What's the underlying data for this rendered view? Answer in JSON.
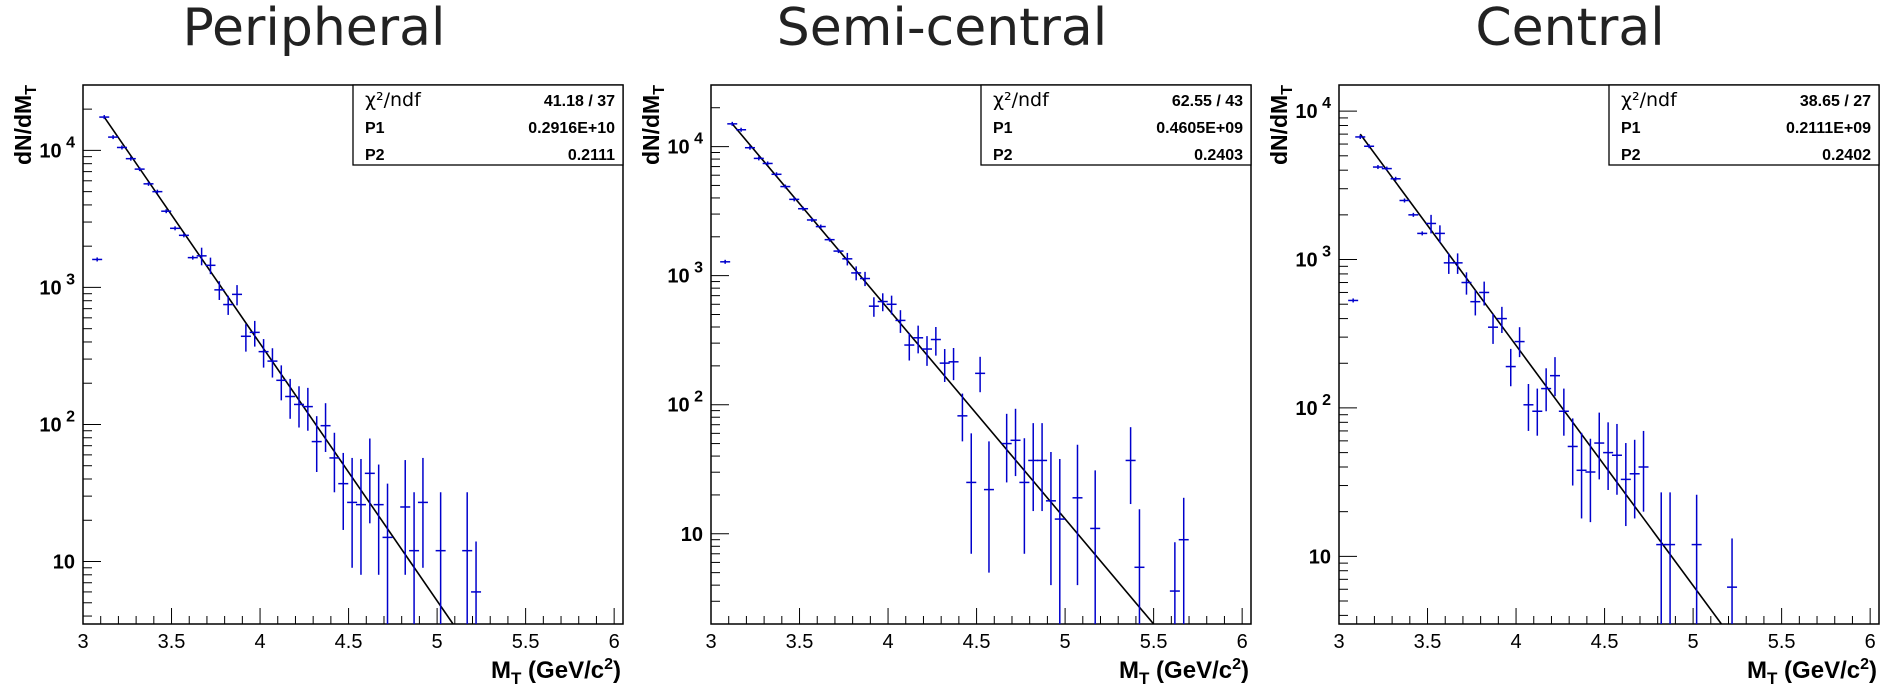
{
  "chart_data": [
    {
      "type": "scatter",
      "title": "Peripheral",
      "xlabel": "M_T (GeV/c^2)",
      "ylabel": "dN/dM_T",
      "xlim": [
        3,
        6.05
      ],
      "ylim": [
        3.5,
        30000
      ],
      "yscale": "log",
      "xticks": [
        "3",
        "3.5",
        "4",
        "4.5",
        "5",
        "5.5",
        "6"
      ],
      "yticks": [
        "10",
        "10^2",
        "10^3",
        "10^4"
      ],
      "fit_box": {
        "chi2_label": "χ²/ndf",
        "chi2": "41.18",
        "sep": "/",
        "ndf": "37",
        "p1_label": "P1",
        "p1": "0.2916E+10",
        "p2_label": "P2",
        "p2": "0.2111"
      },
      "fit_line": {
        "x": [
          3.12,
          5.09
        ],
        "y": [
          17500,
          3.5
        ]
      },
      "points": [
        [
          3.08,
          1600,
          0,
          0
        ],
        [
          3.12,
          17500,
          0,
          0
        ],
        [
          3.17,
          12500,
          0,
          0
        ],
        [
          3.22,
          10500,
          0,
          0
        ],
        [
          3.27,
          8700,
          0,
          0
        ],
        [
          3.32,
          7300,
          0,
          0
        ],
        [
          3.37,
          5700,
          0,
          0
        ],
        [
          3.42,
          5000,
          0,
          0
        ],
        [
          3.47,
          3600,
          0,
          0
        ],
        [
          3.52,
          2700,
          0,
          0
        ],
        [
          3.57,
          2400,
          0,
          0
        ],
        [
          3.62,
          1650,
          0,
          0
        ],
        [
          3.67,
          1700,
          250,
          250
        ],
        [
          3.72,
          1450,
          200,
          200
        ],
        [
          3.77,
          960,
          150,
          150
        ],
        [
          3.82,
          750,
          120,
          120
        ],
        [
          3.87,
          890,
          150,
          150
        ],
        [
          3.92,
          440,
          100,
          100
        ],
        [
          3.97,
          470,
          100,
          100
        ],
        [
          4.02,
          340,
          80,
          80
        ],
        [
          4.07,
          290,
          70,
          70
        ],
        [
          4.12,
          210,
          60,
          60
        ],
        [
          4.17,
          160,
          55,
          50
        ],
        [
          4.22,
          140,
          50,
          45
        ],
        [
          4.27,
          135,
          50,
          45
        ],
        [
          4.32,
          75,
          40,
          30
        ],
        [
          4.37,
          98,
          45,
          35
        ],
        [
          4.42,
          57,
          30,
          25
        ],
        [
          4.47,
          37,
          25,
          20
        ],
        [
          4.52,
          27,
          30,
          18
        ],
        [
          4.57,
          26,
          30,
          18
        ],
        [
          4.62,
          44,
          35,
          25
        ],
        [
          4.67,
          26,
          25,
          18
        ],
        [
          4.72,
          15,
          22,
          12
        ],
        [
          4.82,
          25,
          30,
          17
        ],
        [
          4.87,
          12,
          20,
          10
        ],
        [
          4.92,
          27,
          30,
          18
        ],
        [
          5.02,
          12,
          20,
          10
        ],
        [
          5.17,
          12,
          20,
          9
        ],
        [
          5.22,
          6,
          8,
          4
        ]
      ]
    },
    {
      "type": "scatter",
      "title": "Semi-central",
      "xlabel": "M_T (GeV/c^2)",
      "ylabel": "dN/dM_T",
      "xlim": [
        3,
        6.05
      ],
      "ylim": [
        2,
        30000
      ],
      "yscale": "log",
      "xticks": [
        "3",
        "3.5",
        "4",
        "4.5",
        "5",
        "5.5",
        "6"
      ],
      "yticks": [
        "10",
        "10^2",
        "10^3",
        "10^4"
      ],
      "fit_box": {
        "chi2_label": "χ²/ndf",
        "chi2": "62.55",
        "sep": "/",
        "ndf": "43",
        "p1_label": "P1",
        "p1": "0.4605E+09",
        "p2_label": "P2",
        "p2": "0.2403"
      },
      "fit_line": {
        "x": [
          3.12,
          5.5
        ],
        "y": [
          15000,
          2
        ]
      },
      "points": [
        [
          3.08,
          1280,
          0,
          0
        ],
        [
          3.12,
          15000,
          0,
          0
        ],
        [
          3.17,
          13500,
          0,
          0
        ],
        [
          3.22,
          9800,
          0,
          0
        ],
        [
          3.27,
          8100,
          0,
          0
        ],
        [
          3.32,
          7400,
          0,
          0
        ],
        [
          3.37,
          6100,
          0,
          0
        ],
        [
          3.42,
          4900,
          0,
          0
        ],
        [
          3.47,
          3900,
          0,
          0
        ],
        [
          3.52,
          3300,
          0,
          0
        ],
        [
          3.57,
          2700,
          0,
          0
        ],
        [
          3.62,
          2400,
          0,
          0
        ],
        [
          3.67,
          1900,
          0,
          0
        ],
        [
          3.72,
          1550,
          0,
          0
        ],
        [
          3.77,
          1350,
          150,
          150
        ],
        [
          3.82,
          1050,
          130,
          130
        ],
        [
          3.87,
          950,
          120,
          120
        ],
        [
          3.92,
          580,
          100,
          100
        ],
        [
          3.97,
          630,
          100,
          100
        ],
        [
          4.02,
          600,
          100,
          100
        ],
        [
          4.07,
          450,
          90,
          90
        ],
        [
          4.12,
          290,
          70,
          70
        ],
        [
          4.17,
          330,
          80,
          80
        ],
        [
          4.22,
          270,
          70,
          70
        ],
        [
          4.27,
          320,
          80,
          80
        ],
        [
          4.32,
          210,
          60,
          60
        ],
        [
          4.37,
          215,
          60,
          60
        ],
        [
          4.42,
          82,
          40,
          30
        ],
        [
          4.47,
          25,
          35,
          18
        ],
        [
          4.52,
          175,
          60,
          50
        ],
        [
          4.57,
          22,
          30,
          17
        ],
        [
          4.67,
          50,
          35,
          25
        ],
        [
          4.72,
          53,
          40,
          25
        ],
        [
          4.77,
          25,
          30,
          18
        ],
        [
          4.82,
          37,
          35,
          22
        ],
        [
          4.87,
          37,
          35,
          22
        ],
        [
          4.92,
          18,
          25,
          14
        ],
        [
          4.97,
          13,
          25,
          11
        ],
        [
          5.07,
          19,
          30,
          15
        ],
        [
          5.17,
          11,
          20,
          10
        ],
        [
          5.37,
          37,
          30,
          20
        ],
        [
          5.42,
          5.5,
          10,
          4.5
        ],
        [
          5.62,
          3.6,
          5,
          2.5
        ],
        [
          5.67,
          9,
          10,
          7
        ]
      ]
    },
    {
      "type": "scatter",
      "title": "Central",
      "xlabel": "M_T (GeV/c^2)",
      "ylabel": "dN/dM_T",
      "xlim": [
        3,
        6.05
      ],
      "ylim": [
        3.5,
        15000
      ],
      "yscale": "log",
      "xticks": [
        "3",
        "3.5",
        "4",
        "4.5",
        "5",
        "5.5",
        "6"
      ],
      "yticks": [
        "10",
        "10^2",
        "10^3",
        "10^4"
      ],
      "fit_box": {
        "chi2_label": "χ²/ndf",
        "chi2": "38.65",
        "sep": "/",
        "ndf": "27",
        "p1_label": "P1",
        "p1": "0.2111E+09",
        "p2_label": "P2",
        "p2": "0.2402"
      },
      "fit_line": {
        "x": [
          3.12,
          5.16
        ],
        "y": [
          7000,
          3.5
        ]
      },
      "points": [
        [
          3.08,
          530,
          0,
          0
        ],
        [
          3.12,
          6700,
          0,
          0
        ],
        [
          3.17,
          5800,
          0,
          0
        ],
        [
          3.22,
          4200,
          0,
          0
        ],
        [
          3.27,
          4100,
          0,
          0
        ],
        [
          3.32,
          3500,
          0,
          0
        ],
        [
          3.37,
          2500,
          0,
          0
        ],
        [
          3.42,
          2000,
          0,
          0
        ],
        [
          3.47,
          1500,
          0,
          0
        ],
        [
          3.52,
          1750,
          250,
          250
        ],
        [
          3.57,
          1500,
          200,
          200
        ],
        [
          3.62,
          950,
          150,
          150
        ],
        [
          3.67,
          950,
          150,
          150
        ],
        [
          3.72,
          700,
          120,
          120
        ],
        [
          3.77,
          520,
          100,
          100
        ],
        [
          3.82,
          600,
          110,
          110
        ],
        [
          3.87,
          350,
          80,
          80
        ],
        [
          3.92,
          400,
          80,
          80
        ],
        [
          3.97,
          190,
          60,
          50
        ],
        [
          4.02,
          280,
          70,
          60
        ],
        [
          4.07,
          105,
          40,
          35
        ],
        [
          4.12,
          95,
          40,
          30
        ],
        [
          4.17,
          135,
          50,
          40
        ],
        [
          4.22,
          165,
          55,
          45
        ],
        [
          4.27,
          95,
          40,
          30
        ],
        [
          4.32,
          55,
          30,
          25
        ],
        [
          4.37,
          38,
          30,
          20
        ],
        [
          4.42,
          37,
          25,
          20
        ],
        [
          4.47,
          58,
          35,
          25
        ],
        [
          4.52,
          50,
          30,
          22
        ],
        [
          4.57,
          48,
          30,
          22
        ],
        [
          4.62,
          33,
          25,
          17
        ],
        [
          4.67,
          36,
          25,
          18
        ],
        [
          4.72,
          40,
          30,
          20
        ],
        [
          4.82,
          12,
          15,
          9
        ],
        [
          4.87,
          12,
          15,
          9
        ],
        [
          5.02,
          12,
          14,
          9
        ],
        [
          5.22,
          6.2,
          7,
          4
        ]
      ]
    }
  ]
}
